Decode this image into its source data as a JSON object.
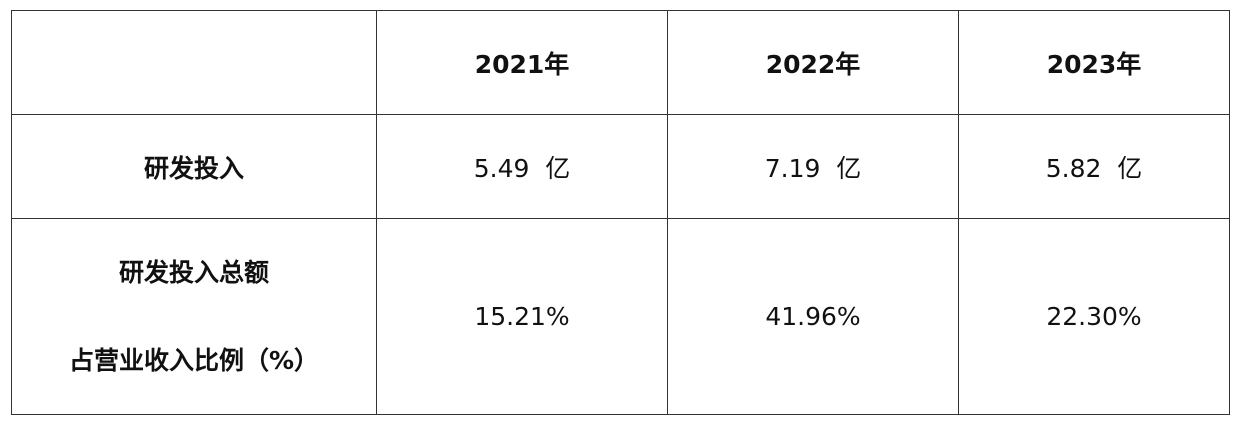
{
  "table": {
    "header": [
      "2021年",
      "2022年",
      "2023年"
    ],
    "rows": [
      {
        "label": [
          "研发投入"
        ],
        "cells": [
          "5.49  亿",
          "7.19  亿",
          "5.82  亿"
        ]
      },
      {
        "label": [
          "研发投入总额",
          "占营业收入比例（%）"
        ],
        "cells": [
          "15.21%",
          "41.96%",
          "22.30%"
        ]
      }
    ]
  }
}
